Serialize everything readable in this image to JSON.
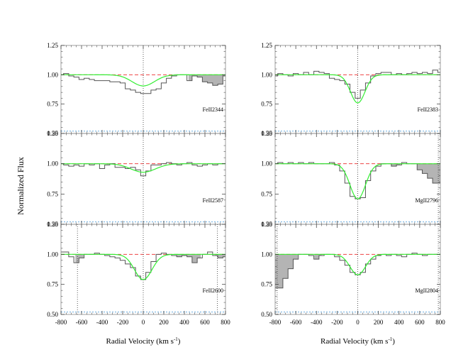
{
  "figure": {
    "ylabel": "Normalized Flux",
    "xlabel": "Radial Velocity (km s",
    "xlabel_sup": "-1",
    "xlabel_close": ")"
  },
  "colors": {
    "spectrum": "#555555",
    "fit": "#33ee33",
    "continuum": "#ee4444",
    "error": "#66aadd",
    "shade": "#b4b4b4",
    "frame": "#888888"
  },
  "chart_data": {
    "type": "line",
    "xlim": [
      -800,
      800
    ],
    "xticks": [
      -800,
      -600,
      -400,
      -200,
      0,
      200,
      400,
      600,
      800
    ],
    "ylim": [
      0.5,
      1.25
    ],
    "yticks": [
      0.5,
      0.75,
      1.0,
      1.25
    ],
    "ytick_labels": [
      "0.50",
      "0.75",
      "1.00",
      "1.25"
    ],
    "xtick_labels": [
      "-800",
      "-600",
      "-400",
      "-200",
      "0",
      "200",
      "400",
      "600",
      "800"
    ],
    "grid": false,
    "panels": [
      {
        "col": 0,
        "row": 0,
        "label": "FeII2344",
        "fit": {
          "depth": 0.095,
          "sigma": 110
        },
        "error_level": 0.52,
        "vlines": [
          0
        ],
        "shaded": [
          [
            440,
            800
          ]
        ],
        "spectrum": [
          {
            "x": -800,
            "y": 1.0
          },
          {
            "x": -750,
            "y": 1.01
          },
          {
            "x": -700,
            "y": 0.99
          },
          {
            "x": -650,
            "y": 0.98
          },
          {
            "x": -600,
            "y": 0.96
          },
          {
            "x": -550,
            "y": 0.97
          },
          {
            "x": -500,
            "y": 0.96
          },
          {
            "x": -450,
            "y": 0.95
          },
          {
            "x": -400,
            "y": 0.95
          },
          {
            "x": -350,
            "y": 0.95
          },
          {
            "x": -300,
            "y": 0.94
          },
          {
            "x": -250,
            "y": 0.94
          },
          {
            "x": -200,
            "y": 0.93
          },
          {
            "x": -150,
            "y": 0.88
          },
          {
            "x": -100,
            "y": 0.87
          },
          {
            "x": -50,
            "y": 0.85
          },
          {
            "x": 0,
            "y": 0.84
          },
          {
            "x": 50,
            "y": 0.84
          },
          {
            "x": 100,
            "y": 0.87
          },
          {
            "x": 150,
            "y": 0.88
          },
          {
            "x": 200,
            "y": 0.93
          },
          {
            "x": 250,
            "y": 0.97
          },
          {
            "x": 300,
            "y": 0.99
          },
          {
            "x": 350,
            "y": 1.0
          },
          {
            "x": 400,
            "y": 1.0
          },
          {
            "x": 450,
            "y": 0.95
          },
          {
            "x": 500,
            "y": 0.99
          },
          {
            "x": 550,
            "y": 0.98
          },
          {
            "x": 600,
            "y": 0.94
          },
          {
            "x": 650,
            "y": 0.93
          },
          {
            "x": 700,
            "y": 0.91
          },
          {
            "x": 750,
            "y": 0.92
          },
          {
            "x": 800,
            "y": 0.99
          }
        ]
      },
      {
        "col": 0,
        "row": 1,
        "label": "FeII2587",
        "fit": {
          "depth": 0.07,
          "sigma": 120
        },
        "error_level": 0.52,
        "vlines": [
          0
        ],
        "shaded": [],
        "spectrum": [
          {
            "x": -800,
            "y": 1.0
          },
          {
            "x": -750,
            "y": 0.99
          },
          {
            "x": -700,
            "y": 0.98
          },
          {
            "x": -650,
            "y": 0.99
          },
          {
            "x": -600,
            "y": 0.98
          },
          {
            "x": -550,
            "y": 1.0
          },
          {
            "x": -500,
            "y": 0.99
          },
          {
            "x": -450,
            "y": 1.0
          },
          {
            "x": -400,
            "y": 0.96
          },
          {
            "x": -350,
            "y": 0.99
          },
          {
            "x": -300,
            "y": 1.0
          },
          {
            "x": -250,
            "y": 0.97
          },
          {
            "x": -200,
            "y": 0.97
          },
          {
            "x": -150,
            "y": 0.96
          },
          {
            "x": -100,
            "y": 0.97
          },
          {
            "x": -50,
            "y": 0.95
          },
          {
            "x": 0,
            "y": 0.9
          },
          {
            "x": 50,
            "y": 0.94
          },
          {
            "x": 100,
            "y": 0.99
          },
          {
            "x": 150,
            "y": 0.99
          },
          {
            "x": 200,
            "y": 1.0
          },
          {
            "x": 250,
            "y": 1.01
          },
          {
            "x": 300,
            "y": 1.0
          },
          {
            "x": 350,
            "y": 0.99
          },
          {
            "x": 400,
            "y": 1.0
          },
          {
            "x": 450,
            "y": 1.01
          },
          {
            "x": 500,
            "y": 0.99
          },
          {
            "x": 550,
            "y": 0.98
          },
          {
            "x": 600,
            "y": 0.99
          },
          {
            "x": 650,
            "y": 1.0
          },
          {
            "x": 700,
            "y": 0.99
          },
          {
            "x": 750,
            "y": 1.0
          },
          {
            "x": 800,
            "y": 1.0
          }
        ]
      },
      {
        "col": 0,
        "row": 2,
        "label": "FeII2600",
        "fit": {
          "depth": 0.21,
          "sigma": 85
        },
        "error_level": 0.52,
        "vlines": [
          -640,
          0,
          720
        ],
        "shaded": [
          [
            -660,
            -580
          ],
          [
            320,
            560
          ],
          [
            700,
            800
          ]
        ],
        "spectrum": [
          {
            "x": -800,
            "y": 1.02
          },
          {
            "x": -750,
            "y": 1.02
          },
          {
            "x": -700,
            "y": 0.98
          },
          {
            "x": -650,
            "y": 0.93
          },
          {
            "x": -600,
            "y": 0.97
          },
          {
            "x": -550,
            "y": 1.0
          },
          {
            "x": -500,
            "y": 1.0
          },
          {
            "x": -450,
            "y": 1.01
          },
          {
            "x": -400,
            "y": 1.0
          },
          {
            "x": -350,
            "y": 0.99
          },
          {
            "x": -300,
            "y": 0.98
          },
          {
            "x": -250,
            "y": 0.97
          },
          {
            "x": -200,
            "y": 0.95
          },
          {
            "x": -150,
            "y": 0.92
          },
          {
            "x": -100,
            "y": 0.89
          },
          {
            "x": -50,
            "y": 0.82
          },
          {
            "x": 0,
            "y": 0.79
          },
          {
            "x": 50,
            "y": 0.85
          },
          {
            "x": 100,
            "y": 0.94
          },
          {
            "x": 150,
            "y": 1.0
          },
          {
            "x": 200,
            "y": 1.01
          },
          {
            "x": 250,
            "y": 1.0
          },
          {
            "x": 300,
            "y": 0.99
          },
          {
            "x": 350,
            "y": 0.98
          },
          {
            "x": 400,
            "y": 0.99
          },
          {
            "x": 450,
            "y": 0.98
          },
          {
            "x": 500,
            "y": 0.93
          },
          {
            "x": 550,
            "y": 0.97
          },
          {
            "x": 600,
            "y": 1.0
          },
          {
            "x": 650,
            "y": 1.02
          },
          {
            "x": 700,
            "y": 0.99
          },
          {
            "x": 750,
            "y": 0.97
          },
          {
            "x": 800,
            "y": 0.98
          }
        ]
      },
      {
        "col": 1,
        "row": 0,
        "label": "FeII2383",
        "fit": {
          "depth": 0.24,
          "sigma": 70
        },
        "error_level": 0.52,
        "vlines": [
          0
        ],
        "shaded": [],
        "spectrum": [
          {
            "x": -800,
            "y": 0.99
          },
          {
            "x": -750,
            "y": 1.01
          },
          {
            "x": -700,
            "y": 1.0
          },
          {
            "x": -650,
            "y": 0.99
          },
          {
            "x": -600,
            "y": 1.01
          },
          {
            "x": -550,
            "y": 1.0
          },
          {
            "x": -500,
            "y": 1.02
          },
          {
            "x": -450,
            "y": 1.0
          },
          {
            "x": -400,
            "y": 1.03
          },
          {
            "x": -350,
            "y": 1.02
          },
          {
            "x": -300,
            "y": 1.01
          },
          {
            "x": -250,
            "y": 0.97
          },
          {
            "x": -200,
            "y": 0.96
          },
          {
            "x": -150,
            "y": 0.95
          },
          {
            "x": -100,
            "y": 0.92
          },
          {
            "x": -50,
            "y": 0.85
          },
          {
            "x": 0,
            "y": 0.8
          },
          {
            "x": 50,
            "y": 0.87
          },
          {
            "x": 100,
            "y": 0.93
          },
          {
            "x": 150,
            "y": 0.99
          },
          {
            "x": 200,
            "y": 1.01
          },
          {
            "x": 250,
            "y": 1.02
          },
          {
            "x": 300,
            "y": 1.02
          },
          {
            "x": 350,
            "y": 1.0
          },
          {
            "x": 400,
            "y": 1.01
          },
          {
            "x": 450,
            "y": 1.0
          },
          {
            "x": 500,
            "y": 1.01
          },
          {
            "x": 550,
            "y": 1.02
          },
          {
            "x": 600,
            "y": 1.01
          },
          {
            "x": 650,
            "y": 1.02
          },
          {
            "x": 700,
            "y": 1.01
          },
          {
            "x": 750,
            "y": 1.04
          },
          {
            "x": 800,
            "y": 1.02
          }
        ]
      },
      {
        "col": 1,
        "row": 1,
        "label": "MgII2796",
        "fit": {
          "depth": 0.29,
          "sigma": 75
        },
        "error_level": 0.52,
        "vlines": [
          0,
          780
        ],
        "shaded": [
          [
            280,
            410
          ],
          [
            560,
            800
          ]
        ],
        "spectrum": [
          {
            "x": -800,
            "y": 1.0
          },
          {
            "x": -750,
            "y": 1.01
          },
          {
            "x": -700,
            "y": 1.0
          },
          {
            "x": -650,
            "y": 1.01
          },
          {
            "x": -600,
            "y": 1.0
          },
          {
            "x": -550,
            "y": 1.01
          },
          {
            "x": -500,
            "y": 1.0
          },
          {
            "x": -450,
            "y": 1.01
          },
          {
            "x": -400,
            "y": 1.0
          },
          {
            "x": -350,
            "y": 1.0
          },
          {
            "x": -300,
            "y": 1.0
          },
          {
            "x": -250,
            "y": 1.01
          },
          {
            "x": -200,
            "y": 0.99
          },
          {
            "x": -150,
            "y": 0.94
          },
          {
            "x": -100,
            "y": 0.84
          },
          {
            "x": -50,
            "y": 0.73
          },
          {
            "x": 0,
            "y": 0.71
          },
          {
            "x": 50,
            "y": 0.72
          },
          {
            "x": 100,
            "y": 0.86
          },
          {
            "x": 150,
            "y": 0.94
          },
          {
            "x": 200,
            "y": 0.98
          },
          {
            "x": 250,
            "y": 1.0
          },
          {
            "x": 300,
            "y": 1.0
          },
          {
            "x": 350,
            "y": 0.98
          },
          {
            "x": 400,
            "y": 0.99
          },
          {
            "x": 450,
            "y": 1.01
          },
          {
            "x": 500,
            "y": 1.0
          },
          {
            "x": 550,
            "y": 1.0
          },
          {
            "x": 600,
            "y": 0.95
          },
          {
            "x": 650,
            "y": 0.92
          },
          {
            "x": 700,
            "y": 0.88
          },
          {
            "x": 750,
            "y": 0.84
          },
          {
            "x": 800,
            "y": 0.84
          }
        ]
      },
      {
        "col": 1,
        "row": 2,
        "label": "MgII2804",
        "fit": {
          "depth": 0.17,
          "sigma": 75
        },
        "error_level": 0.52,
        "vlines": [
          -780,
          0,
          780
        ],
        "shaded": [
          [
            -800,
            -580
          ],
          [
            -420,
            -350
          ]
        ],
        "spectrum": [
          {
            "x": -800,
            "y": 0.72
          },
          {
            "x": -750,
            "y": 0.72
          },
          {
            "x": -700,
            "y": 0.8
          },
          {
            "x": -650,
            "y": 0.88
          },
          {
            "x": -600,
            "y": 0.96
          },
          {
            "x": -550,
            "y": 1.0
          },
          {
            "x": -500,
            "y": 1.0
          },
          {
            "x": -450,
            "y": 0.99
          },
          {
            "x": -400,
            "y": 0.96
          },
          {
            "x": -350,
            "y": 0.99
          },
          {
            "x": -300,
            "y": 1.0
          },
          {
            "x": -250,
            "y": 1.0
          },
          {
            "x": -200,
            "y": 0.98
          },
          {
            "x": -150,
            "y": 0.95
          },
          {
            "x": -100,
            "y": 0.91
          },
          {
            "x": -50,
            "y": 0.85
          },
          {
            "x": 0,
            "y": 0.83
          },
          {
            "x": 50,
            "y": 0.85
          },
          {
            "x": 100,
            "y": 0.92
          },
          {
            "x": 150,
            "y": 0.96
          },
          {
            "x": 200,
            "y": 0.99
          },
          {
            "x": 250,
            "y": 1.0
          },
          {
            "x": 300,
            "y": 0.99
          },
          {
            "x": 350,
            "y": 1.0
          },
          {
            "x": 400,
            "y": 0.99
          },
          {
            "x": 450,
            "y": 0.98
          },
          {
            "x": 500,
            "y": 1.0
          },
          {
            "x": 550,
            "y": 1.01
          },
          {
            "x": 600,
            "y": 1.0
          },
          {
            "x": 650,
            "y": 0.99
          },
          {
            "x": 700,
            "y": 1.0
          },
          {
            "x": 750,
            "y": 1.0
          },
          {
            "x": 800,
            "y": 1.0
          }
        ]
      }
    ]
  }
}
